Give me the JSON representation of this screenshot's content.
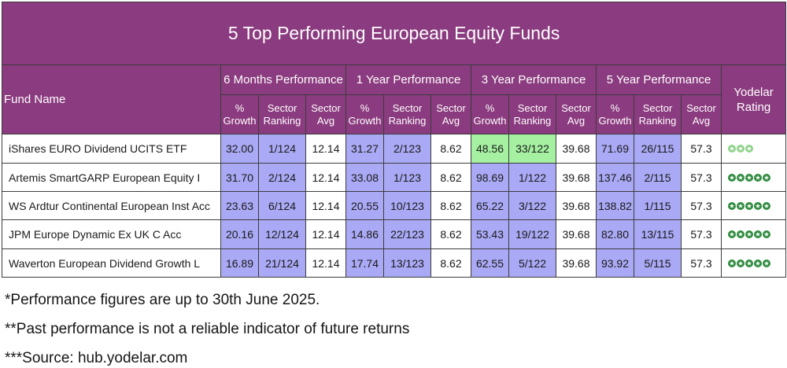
{
  "chart_data": {
    "type": "table",
    "title": "5 Top Performing European Equity Funds",
    "fund_name_header": "Fund Name",
    "group_headers": [
      "6 Months Performance",
      "1 Year Performance",
      "3 Year Performance",
      "5 Year Performance"
    ],
    "sub_headers": [
      "% Growth",
      "Sector Ranking",
      "Sector Avg"
    ],
    "rating_header": "Yodelar Rating",
    "rows": [
      {
        "fund": "iShares EURO Dividend UCITS ETF",
        "m6": {
          "growth": "32.00",
          "rank": "1/124",
          "avg": "12.14"
        },
        "y1": {
          "growth": "31.27",
          "rank": "2/123",
          "avg": "8.62"
        },
        "y3": {
          "growth": "48.56",
          "rank": "33/122",
          "avg": "39.68",
          "highlight": true
        },
        "y5": {
          "growth": "71.69",
          "rank": "26/115",
          "avg": "57.3"
        },
        "rating": 3
      },
      {
        "fund": "Artemis SmartGARP European Equity I",
        "m6": {
          "growth": "31.70",
          "rank": "2/124",
          "avg": "12.14"
        },
        "y1": {
          "growth": "33.08",
          "rank": "1/123",
          "avg": "8.62"
        },
        "y3": {
          "growth": "98.69",
          "rank": "1/122",
          "avg": "39.68"
        },
        "y5": {
          "growth": "137.46",
          "rank": "2/115",
          "avg": "57.3"
        },
        "rating": 5
      },
      {
        "fund": "WS Ardtur Continental European Inst Acc",
        "m6": {
          "growth": "23.63",
          "rank": "6/124",
          "avg": "12.14"
        },
        "y1": {
          "growth": "20.55",
          "rank": "10/123",
          "avg": "8.62"
        },
        "y3": {
          "growth": "65.22",
          "rank": "3/122",
          "avg": "39.68"
        },
        "y5": {
          "growth": "138.82",
          "rank": "1/115",
          "avg": "57.3"
        },
        "rating": 5
      },
      {
        "fund": "JPM Europe Dynamic Ex UK C Acc",
        "m6": {
          "growth": "20.16",
          "rank": "12/124",
          "avg": "12.14"
        },
        "y1": {
          "growth": "14.86",
          "rank": "22/123",
          "avg": "8.62"
        },
        "y3": {
          "growth": "53.43",
          "rank": "19/122",
          "avg": "39.68"
        },
        "y5": {
          "growth": "82.80",
          "rank": "13/115",
          "avg": "57.3"
        },
        "rating": 5
      },
      {
        "fund": "Waverton European Dividend Growth L",
        "m6": {
          "growth": "16.89",
          "rank": "21/124",
          "avg": "12.14"
        },
        "y1": {
          "growth": "17.74",
          "rank": "13/123",
          "avg": "8.62"
        },
        "y3": {
          "growth": "62.55",
          "rank": "5/122",
          "avg": "39.68"
        },
        "y5": {
          "growth": "93.92",
          "rank": "5/115",
          "avg": "57.3"
        },
        "rating": 5
      }
    ]
  },
  "footnotes": [
    "*Performance figures are up to 30th June 2025.",
    "**Past performance is not a reliable indicator of future returns",
    "***Source: hub.yodelar.com"
  ],
  "colors": {
    "header_bg": "#8b3b7f",
    "cell_fill": "#aaa9f5",
    "highlight_fill": "#a5f0a1",
    "border": "#3c3c3c",
    "star": "#2e8b3e",
    "star_light": "#8fd38a"
  }
}
